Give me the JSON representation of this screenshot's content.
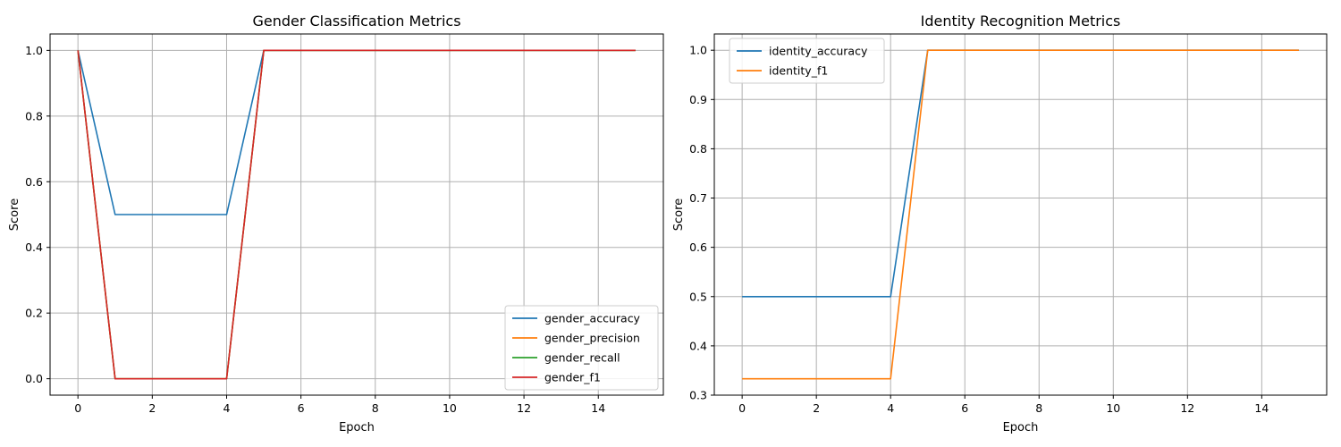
{
  "chart_data": [
    {
      "type": "line",
      "title": "Gender Classification Metrics",
      "xlabel": "Epoch",
      "ylabel": "Score",
      "xlim": [
        -0.75,
        15.75
      ],
      "ylim": [
        -0.05,
        1.05
      ],
      "xticks": [
        0,
        2,
        4,
        6,
        8,
        10,
        12,
        14
      ],
      "yticks": [
        0.0,
        0.2,
        0.4,
        0.6,
        0.8,
        1.0
      ],
      "grid": true,
      "legend_position": "lower-right",
      "x": [
        0,
        1,
        2,
        3,
        4,
        5,
        6,
        7,
        8,
        9,
        10,
        11,
        12,
        13,
        14,
        15
      ],
      "series": [
        {
          "name": "gender_accuracy",
          "color": "#1f77b4",
          "values": [
            1.0,
            0.5,
            0.5,
            0.5,
            0.5,
            1.0,
            1.0,
            1.0,
            1.0,
            1.0,
            1.0,
            1.0,
            1.0,
            1.0,
            1.0,
            1.0
          ]
        },
        {
          "name": "gender_precision",
          "color": "#ff7f0e",
          "values": [
            1.0,
            0.0,
            0.0,
            0.0,
            0.0,
            1.0,
            1.0,
            1.0,
            1.0,
            1.0,
            1.0,
            1.0,
            1.0,
            1.0,
            1.0,
            1.0
          ]
        },
        {
          "name": "gender_recall",
          "color": "#2ca02c",
          "values": [
            1.0,
            0.0,
            0.0,
            0.0,
            0.0,
            1.0,
            1.0,
            1.0,
            1.0,
            1.0,
            1.0,
            1.0,
            1.0,
            1.0,
            1.0,
            1.0
          ]
        },
        {
          "name": "gender_f1",
          "color": "#d62728",
          "values": [
            1.0,
            0.0,
            0.0,
            0.0,
            0.0,
            1.0,
            1.0,
            1.0,
            1.0,
            1.0,
            1.0,
            1.0,
            1.0,
            1.0,
            1.0,
            1.0
          ]
        }
      ]
    },
    {
      "type": "line",
      "title": "Identity Recognition Metrics",
      "xlabel": "Epoch",
      "ylabel": "Score",
      "xlim": [
        -0.75,
        15.75
      ],
      "ylim": [
        0.3,
        1.033
      ],
      "xticks": [
        0,
        2,
        4,
        6,
        8,
        10,
        12,
        14
      ],
      "yticks": [
        0.3,
        0.4,
        0.5,
        0.6,
        0.7,
        0.8,
        0.9,
        1.0
      ],
      "grid": true,
      "legend_position": "upper-left",
      "x": [
        0,
        1,
        2,
        3,
        4,
        5,
        6,
        7,
        8,
        9,
        10,
        11,
        12,
        13,
        14,
        15
      ],
      "series": [
        {
          "name": "identity_accuracy",
          "color": "#1f77b4",
          "values": [
            0.5,
            0.5,
            0.5,
            0.5,
            0.5,
            1.0,
            1.0,
            1.0,
            1.0,
            1.0,
            1.0,
            1.0,
            1.0,
            1.0,
            1.0,
            1.0
          ]
        },
        {
          "name": "identity_f1",
          "color": "#ff7f0e",
          "values": [
            0.3333,
            0.3333,
            0.3333,
            0.3333,
            0.3333,
            1.0,
            1.0,
            1.0,
            1.0,
            1.0,
            1.0,
            1.0,
            1.0,
            1.0,
            1.0,
            1.0
          ]
        }
      ]
    }
  ]
}
